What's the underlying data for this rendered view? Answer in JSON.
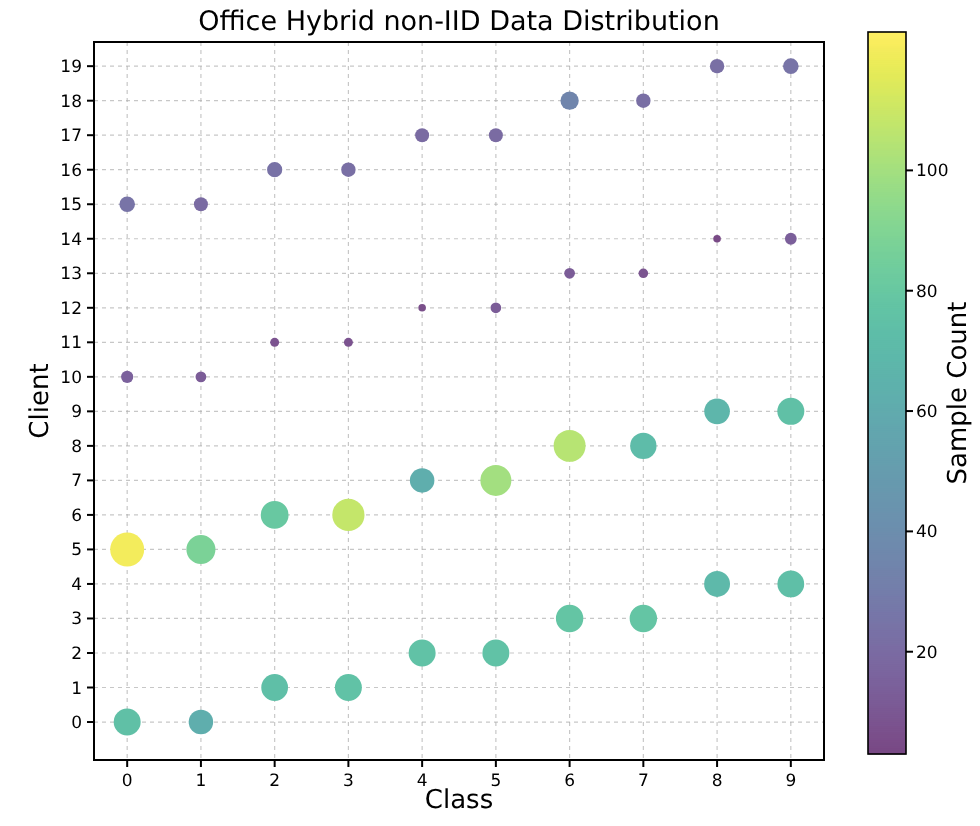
{
  "chart_data": {
    "type": "bubble",
    "title": "Office Hybrid non-IID Data Distribution",
    "xlabel": "Class",
    "ylabel": "Client",
    "clabel": "Sample Count",
    "x": [
      0,
      1,
      2,
      3,
      4,
      5,
      6,
      7,
      8,
      9,
      0,
      1,
      2,
      3,
      4,
      5,
      6,
      7,
      8,
      9,
      0,
      1,
      2,
      3,
      4,
      5,
      6,
      7,
      8,
      9,
      0,
      1,
      2,
      3,
      4,
      5,
      6,
      7,
      8,
      9
    ],
    "values": [
      0,
      0,
      1,
      1,
      2,
      2,
      3,
      3,
      4,
      4,
      5,
      5,
      6,
      6,
      7,
      7,
      8,
      8,
      9,
      9,
      10,
      10,
      11,
      11,
      12,
      12,
      13,
      13,
      14,
      14,
      15,
      15,
      16,
      16,
      17,
      17,
      18,
      18,
      19,
      19
    ],
    "cvalues": [
      75,
      62,
      74,
      76,
      76,
      76,
      78,
      78,
      70,
      74,
      120,
      88,
      80,
      108,
      62,
      100,
      105,
      72,
      68,
      75,
      15,
      12,
      8,
      8,
      6,
      12,
      12,
      9,
      4,
      14,
      25,
      20,
      24,
      22,
      20,
      20,
      35,
      22,
      22,
      25
    ],
    "sizes": [
      0.63,
      0.52,
      0.62,
      0.63,
      0.63,
      0.63,
      0.65,
      0.65,
      0.58,
      0.62,
      1,
      0.73,
      0.67,
      0.9,
      0.52,
      0.83,
      0.88,
      0.6,
      0.57,
      0.63,
      0.13,
      0.1,
      0.07,
      0.07,
      0.05,
      0.1,
      0.1,
      0.08,
      0.05,
      0.12,
      0.21,
      0.17,
      0.2,
      0.18,
      0.17,
      0.17,
      0.29,
      0.18,
      0.18,
      0.21
    ],
    "xlim": [
      -0.45,
      9.45
    ],
    "xticks": [
      0,
      1,
      2,
      3,
      4,
      5,
      6,
      7,
      8,
      9
    ],
    "ylim": [
      -1.1,
      19.7
    ],
    "yticks": [
      0,
      1,
      2,
      3,
      4,
      5,
      6,
      7,
      8,
      9,
      10,
      11,
      12,
      13,
      14,
      15,
      16,
      17,
      18,
      19
    ],
    "clim": [
      3,
      123
    ],
    "cticks": [
      20,
      40,
      60,
      80,
      100
    ],
    "grid": true,
    "marker": "circle"
  }
}
